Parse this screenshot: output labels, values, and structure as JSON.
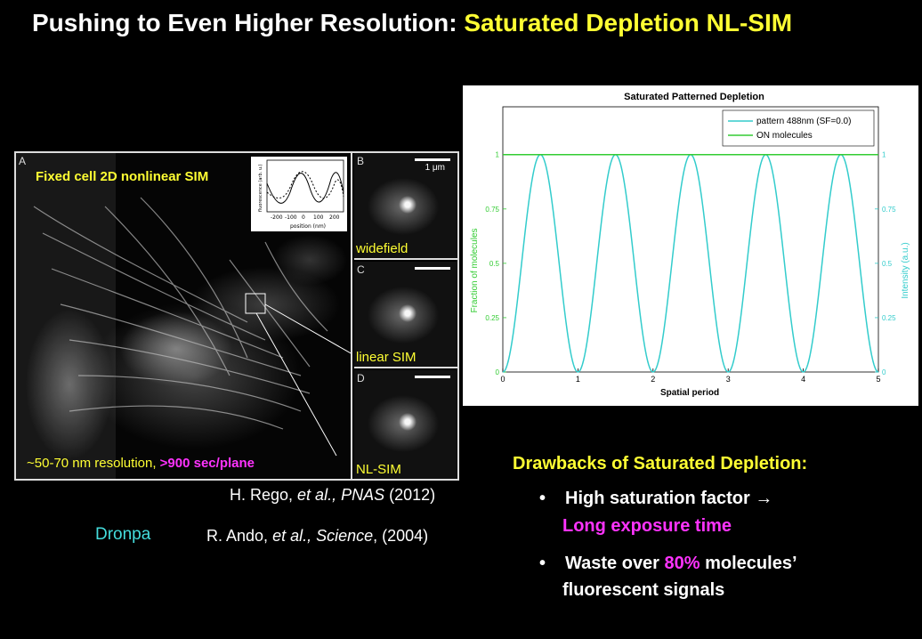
{
  "title": {
    "prefix": "Pushing to Even Higher Resolution: ",
    "highlight": "Saturated Depletion NL-SIM"
  },
  "figure": {
    "panel_a_letter": "A",
    "caption_top": "Fixed cell 2D nonlinear SIM",
    "caption_bottom_prefix": "~50-70 nm resolution, ",
    "caption_bottom_highlight": ">900 sec/plane",
    "inset": {
      "ylabel": "fluorescence (arb. u.)",
      "xlabel": "position (nm)",
      "ticks": [
        "-200",
        "-100",
        "0",
        "100",
        "200"
      ]
    },
    "panels": [
      {
        "letter": "B",
        "label": "widefield",
        "scale": "1 μm"
      },
      {
        "letter": "C",
        "label": "linear SIM",
        "scale": ""
      },
      {
        "letter": "D",
        "label": "NL-SIM",
        "scale": ""
      }
    ]
  },
  "references": {
    "ref1_prefix": "H. Rego, ",
    "ref1_italic": "et al., PNAS",
    "ref1_suffix": " (2012)",
    "dronpa": "Dronpa",
    "ref2_prefix": "R. Ando, ",
    "ref2_italic": "et al., Science",
    "ref2_suffix": ", (2004)"
  },
  "chart_data": {
    "type": "line",
    "title": "Saturated Patterned Depletion",
    "xlabel": "Spatial period",
    "ylabel_left": "Fraction of molecules",
    "ylabel_right": "Intensity (a.u.)",
    "xlim": [
      0,
      5
    ],
    "ylim": [
      0,
      1.22
    ],
    "x_ticks": [
      0,
      1,
      2,
      3,
      4,
      5
    ],
    "y_ticks": [
      0,
      0.25,
      0.5,
      0.75,
      1
    ],
    "series": [
      {
        "name": "pattern 488nm (SF=0.0)",
        "color": "#33cccc",
        "function": "sin^2(pi*x)",
        "period": 1,
        "min": 0,
        "max": 1
      },
      {
        "name": "ON molecules",
        "color": "#33cc33",
        "constant": 1
      }
    ],
    "legend": "top-right"
  },
  "drawbacks": {
    "title": "Drawbacks of Saturated Depletion:",
    "bullet1": "High saturation factor →",
    "bullet1_sub": "Long exposure time",
    "bullet2_prefix": "Waste over ",
    "bullet2_highlight": "80%",
    "bullet2_suffix": " molecules’",
    "bullet2_line2": "fluorescent signals",
    "bullet_char": "•"
  }
}
